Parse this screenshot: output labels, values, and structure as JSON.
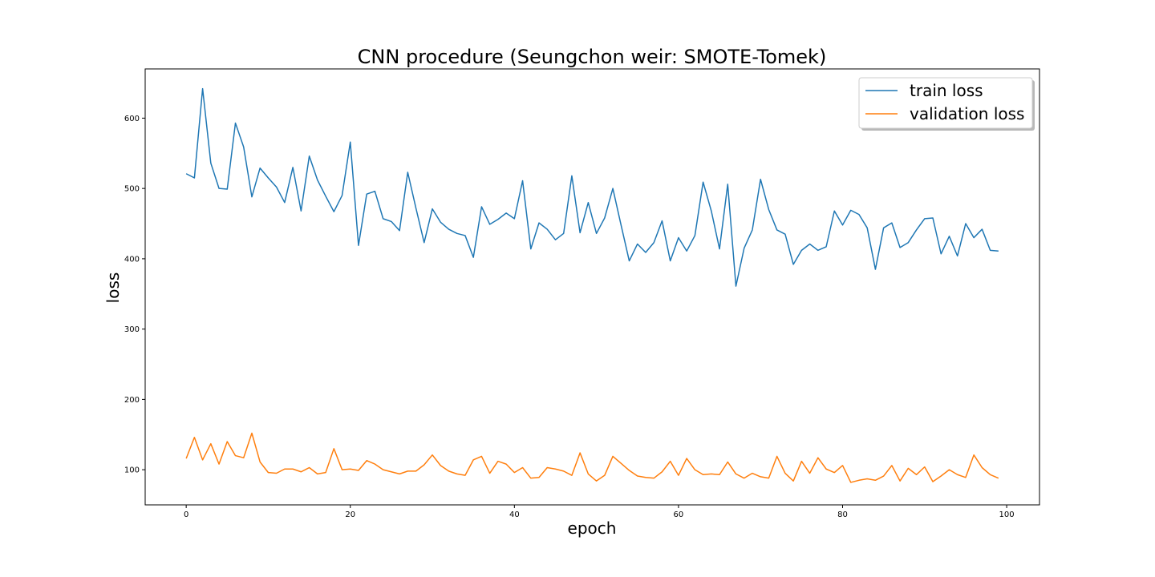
{
  "chart_data": {
    "type": "line",
    "title": "CNN procedure (Seungchon weir: SMOTE-Tomek)",
    "xlabel": "epoch",
    "ylabel": "loss",
    "xlim": [
      -5,
      104
    ],
    "ylim": [
      50,
      670
    ],
    "xticks": [
      0,
      20,
      40,
      60,
      80,
      100
    ],
    "yticks": [
      100,
      200,
      300,
      400,
      500,
      600
    ],
    "grid": false,
    "legend_position": "top-right",
    "series": [
      {
        "name": "train loss",
        "color": "#1f77b4",
        "values": [
          521,
          515,
          642,
          536,
          500,
          499,
          593,
          559,
          488,
          529,
          515,
          502,
          480,
          530,
          468,
          546,
          512,
          489,
          467,
          490,
          566,
          419,
          492,
          496,
          457,
          453,
          440,
          523,
          472,
          423,
          471,
          452,
          442,
          436,
          433,
          402,
          474,
          449,
          456,
          465,
          457,
          511,
          414,
          451,
          442,
          427,
          436,
          518,
          437,
          480,
          436,
          458,
          500,
          448,
          397,
          421,
          409,
          423,
          454,
          397,
          430,
          411,
          433,
          509,
          468,
          414,
          506,
          361,
          415,
          441,
          513,
          470,
          441,
          435,
          392,
          412,
          421,
          412,
          417,
          468,
          448,
          469,
          463,
          444,
          385,
          444,
          451,
          416,
          423,
          441,
          457,
          458,
          407,
          432,
          404,
          450,
          430,
          442,
          412,
          411
        ]
      },
      {
        "name": "validation loss",
        "color": "#ff7f0e",
        "values": [
          116,
          146,
          114,
          137,
          108,
          140,
          120,
          117,
          152,
          111,
          96,
          95,
          101,
          101,
          97,
          103,
          94,
          96,
          130,
          100,
          101,
          99,
          113,
          108,
          100,
          97,
          94,
          98,
          98,
          107,
          121,
          106,
          98,
          94,
          92,
          114,
          119,
          95,
          112,
          108,
          96,
          103,
          88,
          89,
          103,
          101,
          98,
          92,
          124,
          94,
          84,
          92,
          119,
          109,
          99,
          91,
          89,
          88,
          97,
          112,
          92,
          116,
          100,
          93,
          94,
          93,
          111,
          94,
          88,
          95,
          90,
          88,
          119,
          95,
          84,
          112,
          95,
          117,
          101,
          96,
          106,
          82,
          85,
          87,
          85,
          91,
          106,
          84,
          102,
          93,
          104,
          83,
          91,
          100,
          93,
          89,
          121,
          103,
          93,
          88
        ]
      }
    ]
  }
}
